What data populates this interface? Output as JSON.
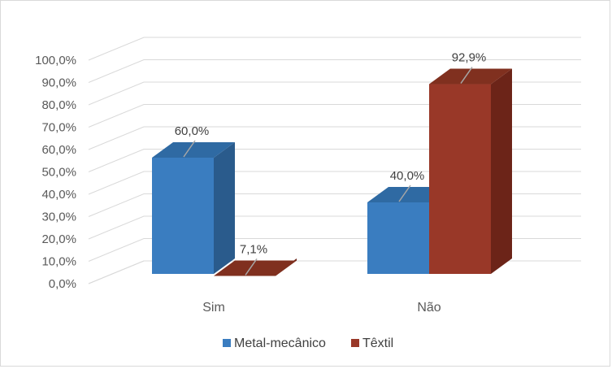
{
  "chart_data": {
    "type": "bar",
    "style": "3d-clustered-column",
    "categories": [
      "Sim",
      "Não"
    ],
    "series": [
      {
        "name": "Metal-mecânico",
        "values": [
          60.0,
          40.0
        ],
        "labels": [
          "60,0%",
          "40,0%"
        ],
        "color": "#3a7dc0",
        "side_color": "#2a5b8c",
        "top_color": "#2f6aa3"
      },
      {
        "name": "Têxtil",
        "values": [
          7.1,
          92.9
        ],
        "labels": [
          "7,1%",
          "92,9%"
        ],
        "color": "#993828",
        "side_color": "#6c2418",
        "top_color": "#80301f"
      }
    ],
    "yticks": [
      "0,0%",
      "10,0%",
      "20,0%",
      "30,0%",
      "40,0%",
      "50,0%",
      "60,0%",
      "70,0%",
      "80,0%",
      "90,0%",
      "100,0%"
    ],
    "ylim": [
      0,
      100
    ],
    "grid": true,
    "legend_position": "bottom",
    "title": "",
    "xlabel": "",
    "ylabel": ""
  }
}
